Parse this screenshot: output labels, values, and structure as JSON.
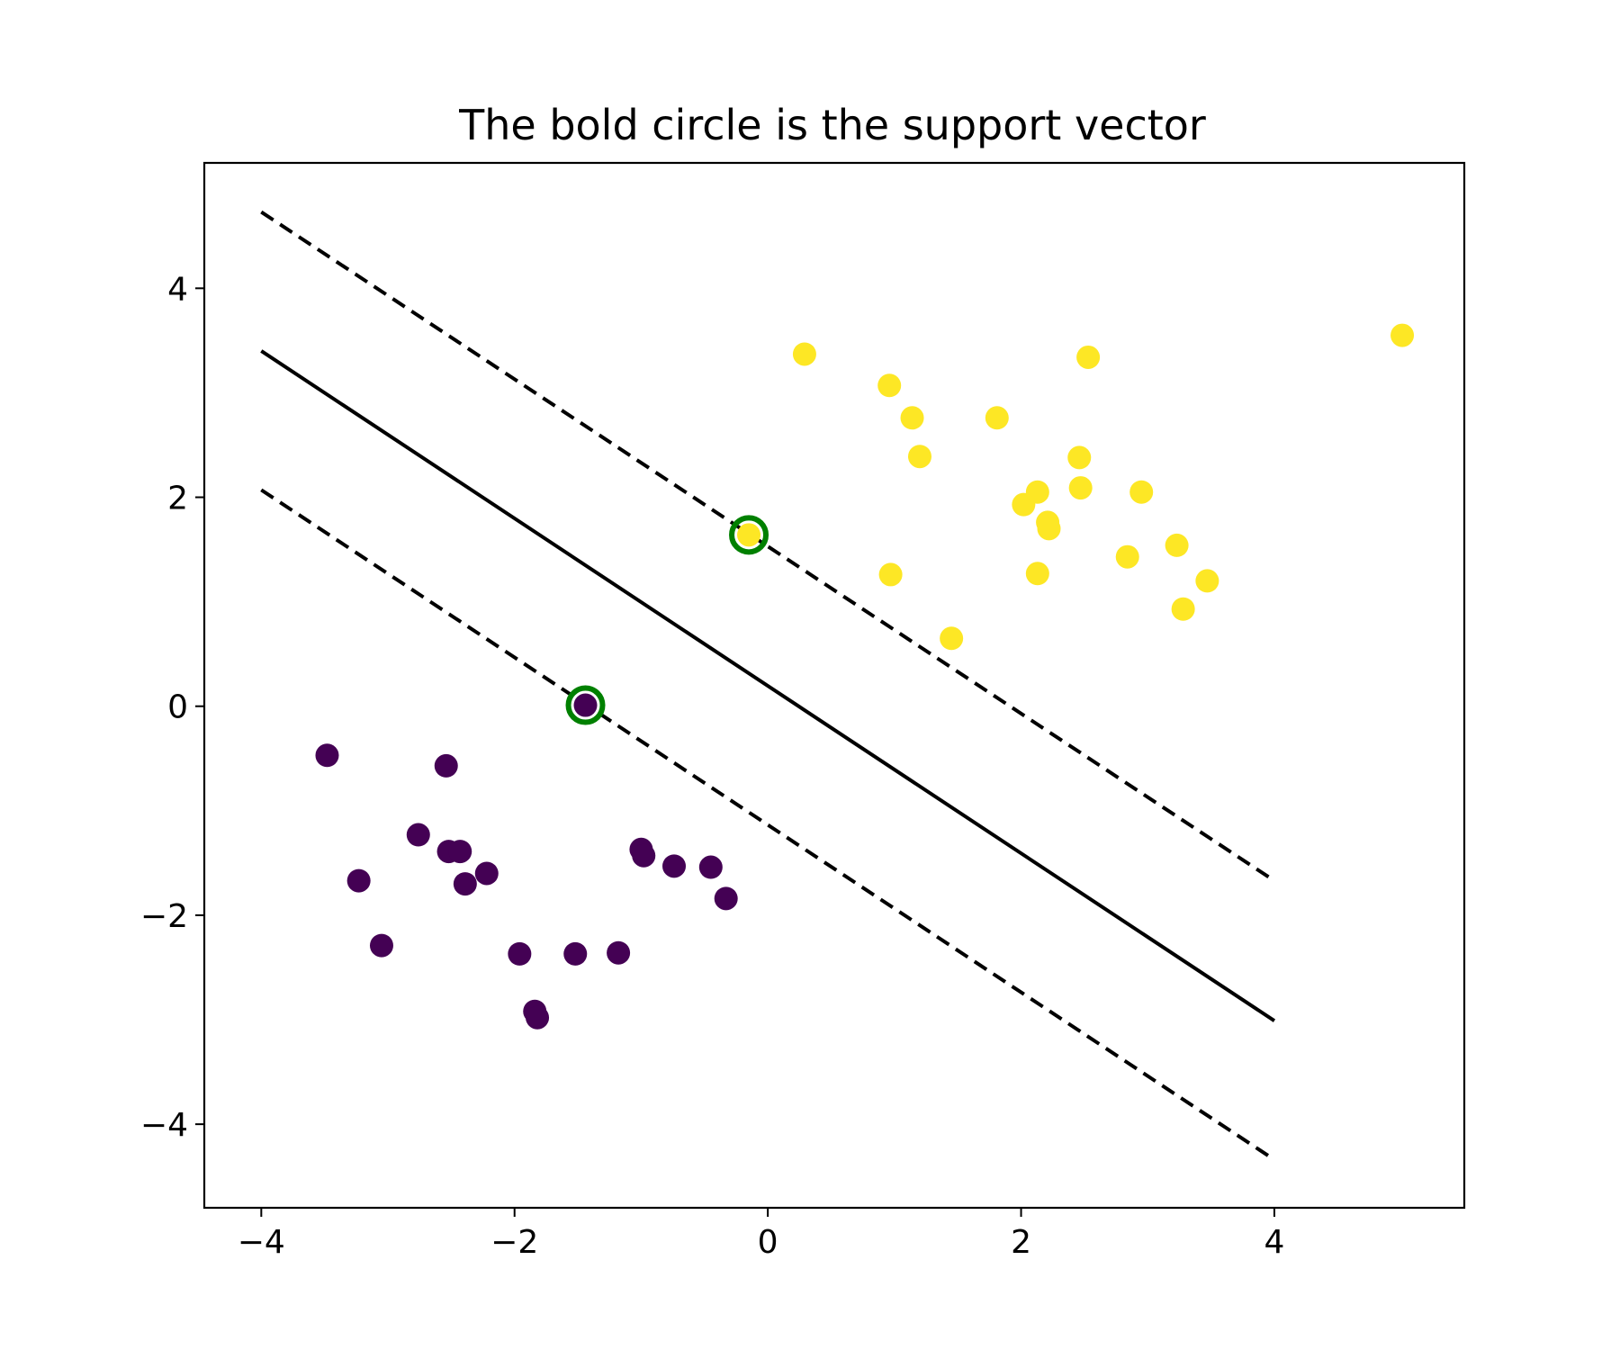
{
  "chart_data": {
    "type": "scatter",
    "title": "The bold circle is the support vector",
    "xlabel": "",
    "ylabel": "",
    "xlim": [
      -4.45,
      5.5
    ],
    "ylim": [
      -4.8,
      5.2
    ],
    "xticks": [
      -4,
      -2,
      0,
      2,
      4
    ],
    "yticks": [
      -4,
      -2,
      0,
      2,
      4
    ],
    "xtick_labels": [
      "−4",
      "−2",
      "0",
      "2",
      "4"
    ],
    "ytick_labels": [
      "−4",
      "−2",
      "0",
      "2",
      "4"
    ],
    "grid": false,
    "colors": {
      "class_0": "#440154",
      "class_1": "#fde725",
      "support_vector_ring": "#008000",
      "lines": "#000000"
    },
    "lines": [
      {
        "style": "dashed",
        "x": [
          -4,
          4
        ],
        "y": [
          4.73,
          -1.67
        ]
      },
      {
        "style": "solid",
        "x": [
          -4,
          4
        ],
        "y": [
          3.4,
          -3.01
        ]
      },
      {
        "style": "dashed",
        "x": [
          -4,
          4
        ],
        "y": [
          2.07,
          -4.34
        ]
      }
    ],
    "series": [
      {
        "class": 0,
        "points": [
          [
            -3.48,
            -0.47
          ],
          [
            -3.23,
            -1.67
          ],
          [
            -3.05,
            -2.29
          ],
          [
            -2.76,
            -1.23
          ],
          [
            -2.54,
            -0.57
          ],
          [
            -2.52,
            -1.39
          ],
          [
            -2.43,
            -1.39
          ],
          [
            -2.39,
            -1.7
          ],
          [
            -2.22,
            -1.6
          ],
          [
            -1.96,
            -2.37
          ],
          [
            -1.84,
            -2.92
          ],
          [
            -1.82,
            -2.98
          ],
          [
            -1.52,
            -2.37
          ],
          [
            -1.18,
            -2.36
          ],
          [
            -1.0,
            -1.37
          ],
          [
            -0.98,
            -1.43
          ],
          [
            -0.74,
            -1.53
          ],
          [
            -0.45,
            -1.54
          ],
          [
            -0.33,
            -1.84
          ],
          [
            -1.44,
            0.01
          ]
        ]
      },
      {
        "class": 1,
        "points": [
          [
            0.29,
            3.37
          ],
          [
            0.96,
            3.07
          ],
          [
            1.14,
            2.76
          ],
          [
            1.2,
            2.39
          ],
          [
            0.97,
            1.26
          ],
          [
            1.45,
            0.65
          ],
          [
            1.81,
            2.76
          ],
          [
            2.02,
            1.93
          ],
          [
            2.13,
            2.05
          ],
          [
            2.21,
            1.76
          ],
          [
            2.22,
            1.7
          ],
          [
            2.13,
            1.27
          ],
          [
            2.46,
            2.38
          ],
          [
            2.47,
            2.09
          ],
          [
            2.53,
            3.34
          ],
          [
            2.84,
            1.43
          ],
          [
            2.95,
            2.05
          ],
          [
            3.23,
            1.54
          ],
          [
            3.28,
            0.93
          ],
          [
            3.47,
            1.2
          ],
          [
            5.01,
            3.55
          ],
          [
            -0.15,
            1.64
          ]
        ]
      }
    ],
    "support_vectors": [
      [
        -0.15,
        1.64
      ],
      [
        -1.44,
        0.01
      ]
    ]
  }
}
